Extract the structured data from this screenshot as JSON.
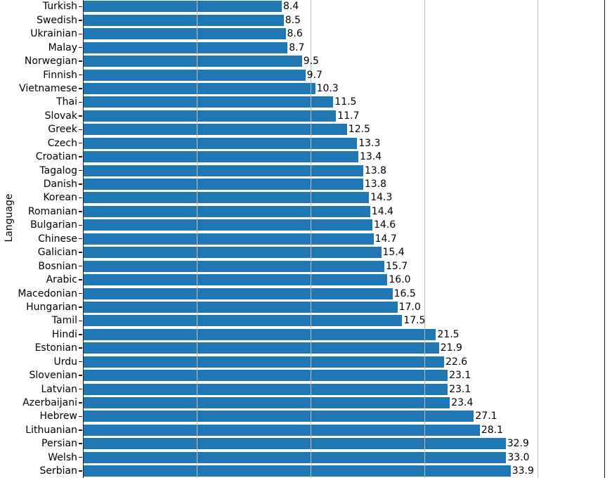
{
  "chart_data": {
    "type": "bar",
    "orientation": "horizontal",
    "title": "",
    "xlabel": "",
    "ylabel": "Language",
    "xscale": "log",
    "xlim": [
      2.5,
      60
    ],
    "xticks": [
      5,
      10,
      20,
      40
    ],
    "grid": true,
    "legend": "none",
    "bar_color": "#1f77b4",
    "grid_color": "#bdbdbd",
    "spine_color": "#1a1a1a",
    "text_color": "#000000",
    "categories": [
      "Turkish",
      "Swedish",
      "Ukrainian",
      "Malay",
      "Norwegian",
      "Finnish",
      "Vietnamese",
      "Thai",
      "Slovak",
      "Greek",
      "Czech",
      "Croatian",
      "Tagalog",
      "Danish",
      "Korean",
      "Romanian",
      "Bulgarian",
      "Chinese",
      "Galician",
      "Bosnian",
      "Arabic",
      "Macedonian",
      "Hungarian",
      "Tamil",
      "Hindi",
      "Estonian",
      "Urdu",
      "Slovenian",
      "Latvian",
      "Azerbaijani",
      "Hebrew",
      "Lithuanian",
      "Persian",
      "Welsh",
      "Serbian"
    ],
    "values": [
      8.4,
      8.5,
      8.6,
      8.7,
      9.5,
      9.7,
      10.3,
      11.5,
      11.7,
      12.5,
      13.3,
      13.4,
      13.8,
      13.8,
      14.3,
      14.4,
      14.6,
      14.7,
      15.4,
      15.7,
      16.0,
      16.5,
      17.0,
      17.5,
      21.5,
      21.9,
      22.6,
      23.1,
      23.1,
      23.4,
      27.1,
      28.1,
      32.9,
      33.0,
      33.9
    ],
    "value_labels": [
      "8.4",
      "8.5",
      "8.6",
      "8.7",
      "9.5",
      "9.7",
      "10.3",
      "11.5",
      "11.7",
      "12.5",
      "13.3",
      "13.4",
      "13.8",
      "13.8",
      "14.3",
      "14.4",
      "14.6",
      "14.7",
      "15.4",
      "15.7",
      "16.0",
      "16.5",
      "17.0",
      "17.5",
      "21.5",
      "21.9",
      "22.6",
      "23.1",
      "23.1",
      "23.4",
      "27.1",
      "28.1",
      "32.9",
      "33.0",
      "33.9"
    ]
  }
}
